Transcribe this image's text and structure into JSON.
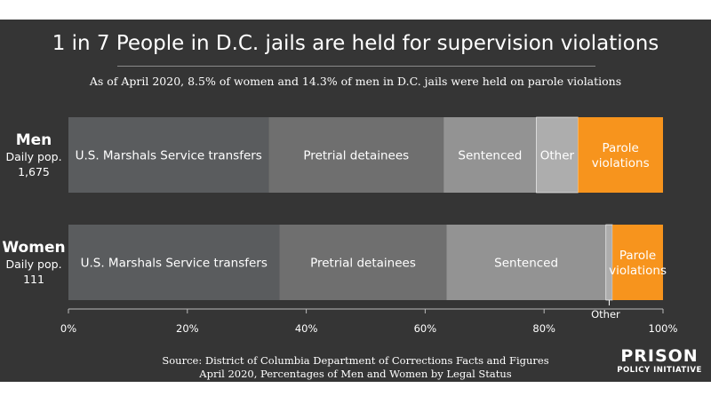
{
  "title": "1 in 7 People in D.C. jails are held for supervision violations",
  "subtitle": "As of April 2020, 8.5% of women and 14.3% of men in D.C. jails were held on parole violations",
  "source": {
    "line1": "Source: District of Columbia Department of Corrections Facts and Figures",
    "line2": "April 2020, Percentages of Men and Women by Legal Status"
  },
  "logo": {
    "line1": "PRISON",
    "line2": "POLICY INITIATIVE"
  },
  "chart_data": {
    "type": "bar",
    "orientation": "horizontal",
    "stacked": true,
    "xlim": [
      0,
      100
    ],
    "xticks": [
      "0%",
      "20%",
      "40%",
      "60%",
      "80%",
      "100%"
    ],
    "grid": false,
    "colors": {
      "U.S. Marshals Service transfers": "#5a5c5e",
      "Pretrial detainees": "#6f6f6f",
      "Sentenced": "#939393",
      "Other": "#adadad",
      "Parole violations": "#f7941d"
    },
    "categories": [
      {
        "label": "Men",
        "pop_label": "Daily pop.",
        "pop_value": "1,675"
      },
      {
        "label": "Women",
        "pop_label": "Daily pop.",
        "pop_value": "111"
      }
    ],
    "series": [
      {
        "name": "U.S. Marshals Service transfers",
        "values": [
          33.7,
          35.5
        ]
      },
      {
        "name": "Pretrial detainees",
        "values": [
          29.4,
          28.1
        ]
      },
      {
        "name": "Sentenced",
        "values": [
          15.6,
          26.8
        ]
      },
      {
        "name": "Other",
        "values": [
          7.0,
          1.1
        ]
      },
      {
        "name": "Parole violations",
        "values": [
          14.3,
          8.5
        ]
      }
    ],
    "segment_labels": [
      [
        "U.S. Marshals Service transfers",
        "Pretrial detainees",
        "Sentenced",
        "Other",
        "Parole|violations"
      ],
      [
        "U.S. Marshals Service transfers",
        "Pretrial detainees",
        "Sentenced",
        "",
        "Parole|violations"
      ]
    ],
    "callouts": [
      {
        "category": 1,
        "series": 3,
        "text": "Other"
      }
    ]
  }
}
